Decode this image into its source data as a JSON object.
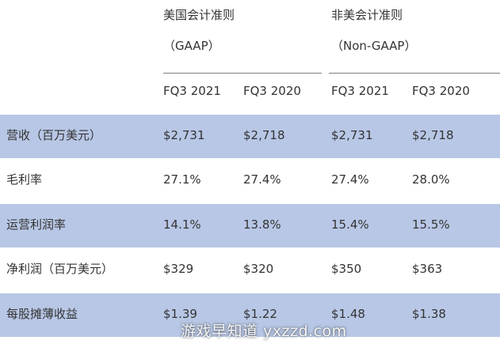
{
  "header": {
    "gaap_title": "美国会计准则",
    "gaap_subtitle": "（GAAP）",
    "non_gaap_title": "非美会计准则",
    "non_gaap_subtitle": "（Non-GAAP）",
    "columns": [
      "FQ3 2021",
      "FQ3 2020",
      "FQ3 2021",
      "FQ3 2020"
    ]
  },
  "rows": [
    {
      "label": "营收（百万美元）",
      "values": [
        "$2,731",
        "$2,718",
        "$2,731",
        "$2,718"
      ]
    },
    {
      "label": "毛利率",
      "values": [
        "27.1%",
        "27.4%",
        "27.4%",
        "28.0%"
      ]
    },
    {
      "label": "运营利润率",
      "values": [
        "14.1%",
        "13.8%",
        "15.4%",
        "15.5%"
      ]
    },
    {
      "label": "净利润（百万美元）",
      "values": [
        "$329",
        "$320",
        "$350",
        "$363"
      ]
    },
    {
      "label": "每股摊薄收益",
      "values": [
        "$1.39",
        "$1.22",
        "$1.48",
        "$1.38"
      ]
    }
  ],
  "watermark": "游戏早知道 yxzzd.com",
  "colors": {
    "row_highlight": "#b8c7e6",
    "text": "#333333",
    "rule": "#7f7f7f"
  }
}
